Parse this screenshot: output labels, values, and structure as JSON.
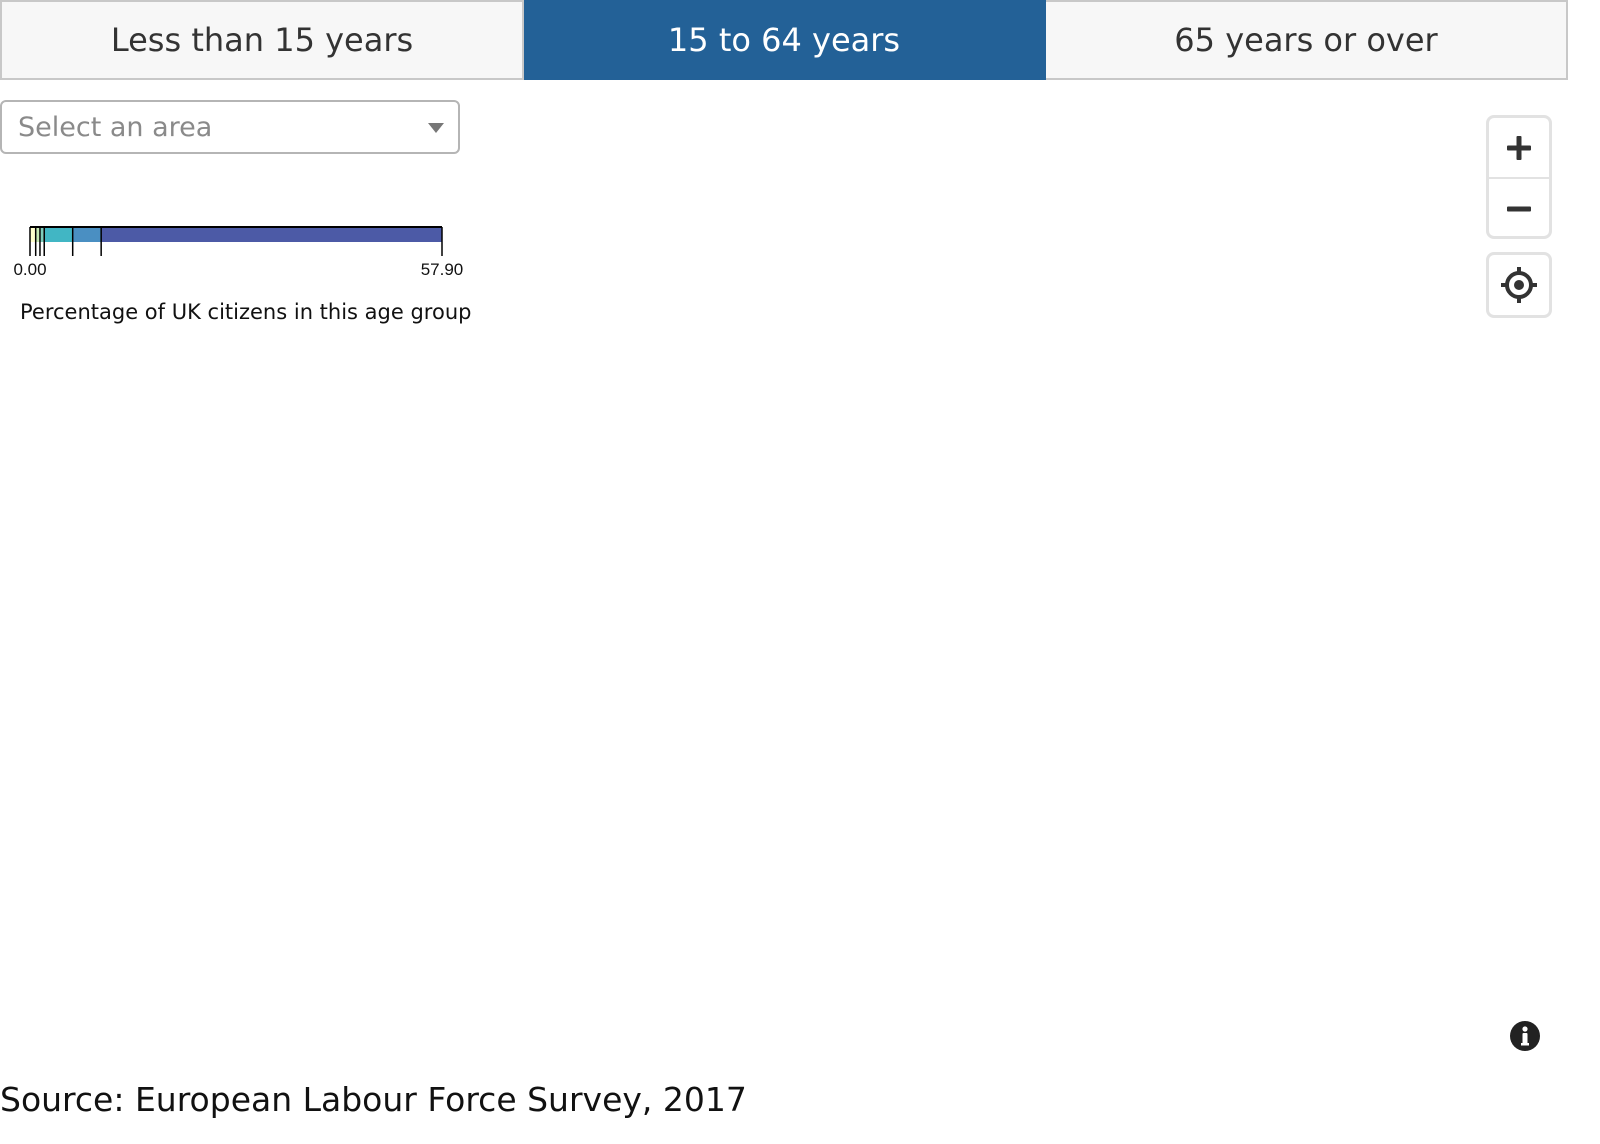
{
  "tabs": [
    {
      "label": "Less than 15 years",
      "active": false
    },
    {
      "label": "15 to 64 years",
      "active": true
    },
    {
      "label": "65 years or over",
      "active": false
    }
  ],
  "area_select": {
    "placeholder": "Select an area"
  },
  "legend": {
    "min_label": "0.00",
    "max_label": "57.90",
    "min": 0.0,
    "max": 57.9,
    "breaks": [
      0.0,
      0.8,
      1.4,
      2.0,
      6.0,
      10.0,
      57.9
    ],
    "colors": [
      "#ffffcc",
      "#c7e9b4",
      "#7fcdbb",
      "#41b6c4",
      "#4a8fc2",
      "#4c5aa6"
    ],
    "caption": "Percentage of UK citizens in this age group"
  },
  "map_controls": {
    "zoom_in_icon": "plus-icon",
    "zoom_out_icon": "minus-icon",
    "locate_icon": "crosshair-icon",
    "info_icon": "info-icon"
  },
  "theme": {
    "accent": "#236197"
  },
  "source": "Source: European Labour Force Survey, 2017"
}
